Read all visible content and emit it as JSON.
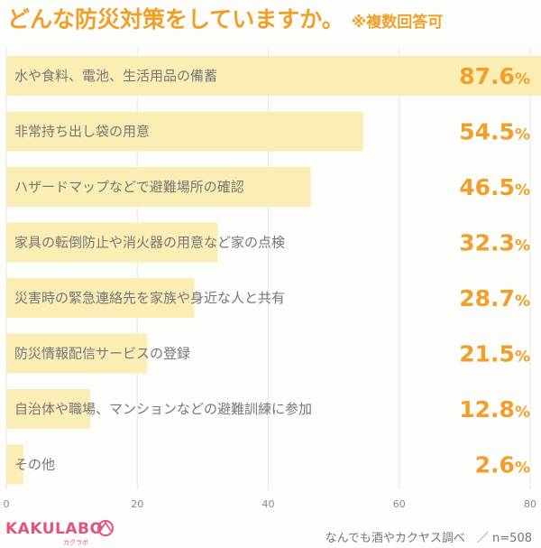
{
  "header": {
    "title": "どんな防災対策をしていますか。",
    "subtitle": "※複数回答可"
  },
  "chart_data": {
    "type": "bar",
    "orientation": "horizontal",
    "categories": [
      "水や食料、電池、生活用品の備蓄",
      "非常持ち出し袋の用意",
      "ハザードマップなどで避難場所の確認",
      "家具の転倒防止や消火器の用意など家の点検",
      "災害時の緊急連絡先を家族や身近な人と共有",
      "防災情報配信サービスの登録",
      "自治体や職場、マンションなどの避難訓練に参加",
      "その他"
    ],
    "values": [
      87.6,
      54.5,
      46.5,
      32.3,
      28.7,
      21.5,
      12.8,
      2.6
    ],
    "value_labels": [
      "87.6",
      "54.5",
      "46.5",
      "32.3",
      "28.7",
      "21.5",
      "12.8",
      "2.6"
    ],
    "value_unit": "%",
    "xlim": [
      0,
      80
    ],
    "xticks": [
      "0",
      "20",
      "40",
      "60",
      "80"
    ],
    "grid": true,
    "bar_color": "#faeeb4",
    "value_color": "#f0a02a"
  },
  "footer": {
    "logo": "KAKULABO",
    "logo_kana": "カクラボ",
    "source": "なんでも酒やカクヤス調べ　／ n=508"
  }
}
